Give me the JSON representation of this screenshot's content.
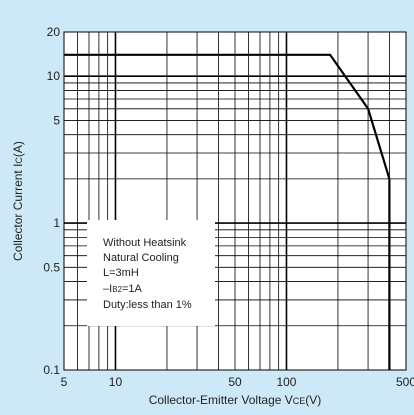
{
  "chart_data": {
    "type": "line",
    "title": "",
    "xlabel_main": "Collector-Emitter Voltage V",
    "xlabel_sub": "CE",
    "xlabel_unit": "(V)",
    "ylabel_main": "Collector Current I",
    "ylabel_sub": "C",
    "ylabel_unit": "(A)",
    "x_scale": "log",
    "y_scale": "log",
    "xlim": [
      5,
      500
    ],
    "ylim": [
      0.1,
      20
    ],
    "x_tick_labels": [
      {
        "v": 5,
        "label": "5"
      },
      {
        "v": 10,
        "label": "10"
      },
      {
        "v": 50,
        "label": "50"
      },
      {
        "v": 100,
        "label": "100"
      },
      {
        "v": 500,
        "label": "500"
      }
    ],
    "y_tick_labels": [
      {
        "v": 0.1,
        "label": "0.1"
      },
      {
        "v": 0.5,
        "label": "0.5"
      },
      {
        "v": 1,
        "label": "1"
      },
      {
        "v": 5,
        "label": "5"
      },
      {
        "v": 10,
        "label": "10"
      },
      {
        "v": 20,
        "label": "20"
      }
    ],
    "grid": true,
    "series": [
      {
        "x": [
          5,
          180,
          300,
          400,
          400
        ],
        "y": [
          14,
          14,
          6,
          2,
          0.1
        ]
      }
    ],
    "annotation": {
      "lines": [
        {
          "text": "Without Heatsink"
        },
        {
          "text": "Natural Cooling"
        },
        {
          "text": "L=3mH"
        },
        {
          "prefix": "–I",
          "sub": "B2",
          "suffix": "=1A"
        },
        {
          "text": "Duty:less than 1%"
        }
      ]
    },
    "colors": {
      "background": "#cde8f6",
      "plot": "#ffffff",
      "line": "#000000"
    }
  }
}
